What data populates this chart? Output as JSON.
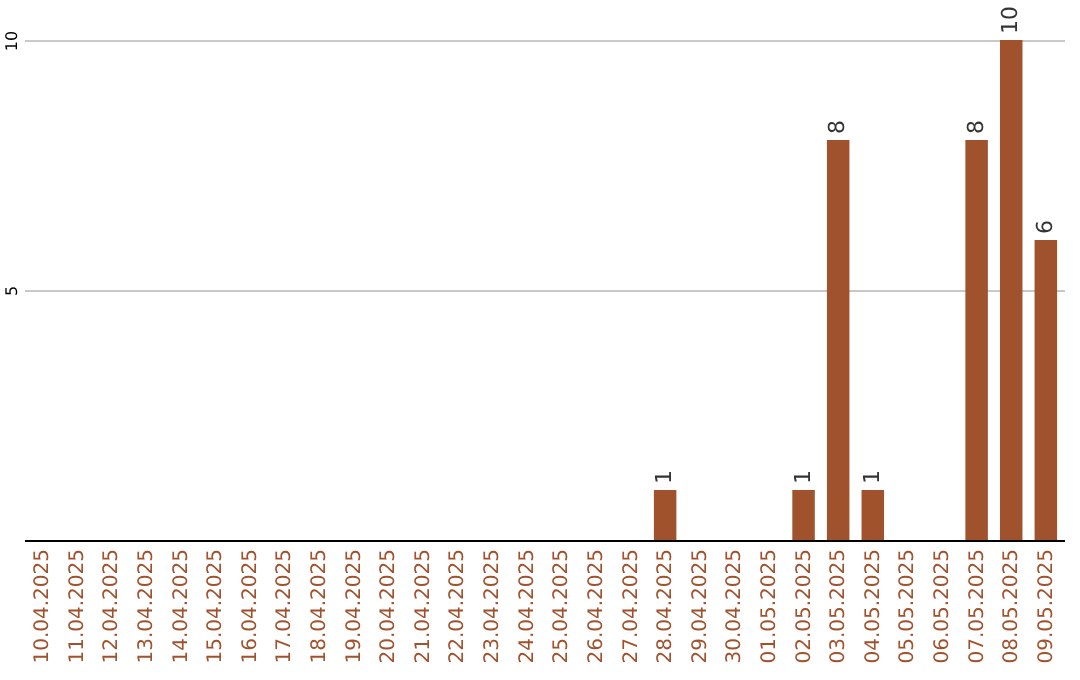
{
  "chart_data": {
    "type": "bar",
    "categories": [
      "10.04.2025",
      "11.04.2025",
      "12.04.2025",
      "13.04.2025",
      "14.04.2025",
      "15.04.2025",
      "16.04.2025",
      "17.04.2025",
      "18.04.2025",
      "19.04.2025",
      "20.04.2025",
      "21.04.2025",
      "22.04.2025",
      "23.04.2025",
      "24.04.2025",
      "25.04.2025",
      "26.04.2025",
      "27.04.2025",
      "28.04.2025",
      "29.04.2025",
      "30.04.2025",
      "01.05.2025",
      "02.05.2025",
      "03.05.2025",
      "04.05.2025",
      "05.05.2025",
      "06.05.2025",
      "07.05.2025",
      "08.05.2025",
      "09.05.2025"
    ],
    "values": [
      0,
      0,
      0,
      0,
      0,
      0,
      0,
      0,
      0,
      0,
      0,
      0,
      0,
      0,
      0,
      0,
      0,
      0,
      1,
      0,
      0,
      0,
      1,
      8,
      1,
      0,
      0,
      8,
      10,
      6
    ],
    "value_labels": [
      null,
      null,
      null,
      null,
      null,
      null,
      null,
      null,
      null,
      null,
      null,
      null,
      null,
      null,
      null,
      null,
      null,
      null,
      "1",
      null,
      null,
      null,
      "1",
      "8",
      "1",
      null,
      null,
      "8",
      "10",
      "6"
    ],
    "color": "#a0522d",
    "ylim": [
      0,
      10
    ],
    "yticks": [
      5,
      10
    ],
    "grid": "y"
  }
}
